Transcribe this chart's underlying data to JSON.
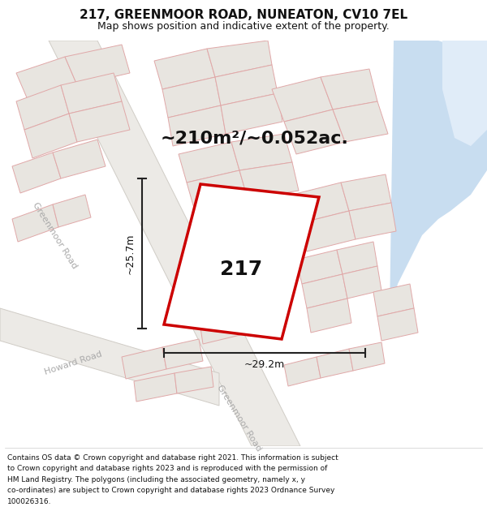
{
  "title": "217, GREENMOOR ROAD, NUNEATON, CV10 7EL",
  "subtitle": "Map shows position and indicative extent of the property.",
  "area_label": "~210m²/~0.052ac.",
  "property_number": "217",
  "dim_vertical": "~25.7m",
  "dim_horizontal": "~29.2m",
  "footer_lines": [
    "Contains OS data © Crown copyright and database right 2021. This information is subject",
    "to Crown copyright and database rights 2023 and is reproduced with the permission of",
    "HM Land Registry. The polygons (including the associated geometry, namely x, y",
    "co-ordinates) are subject to Crown copyright and database rights 2023 Ordnance Survey",
    "100026316."
  ],
  "map_bg": "#f0eeeb",
  "road_fill": "#e8e4df",
  "road_edge": "#c8c4be",
  "water_color": "#c8ddf0",
  "water2_color": "#d8e8f5",
  "plot_bg": "#e8e5e0",
  "plot_edge": "#e8a0a0",
  "plot_color": "#cc0000",
  "dim_color": "#222222",
  "road_label_color": "#aaaaaa",
  "title_fontsize": 11,
  "subtitle_fontsize": 9,
  "area_fontsize": 16,
  "prop_num_fontsize": 18,
  "road_label_fontsize": 8,
  "footer_fontsize": 6.5,
  "dim_fontsize": 9
}
